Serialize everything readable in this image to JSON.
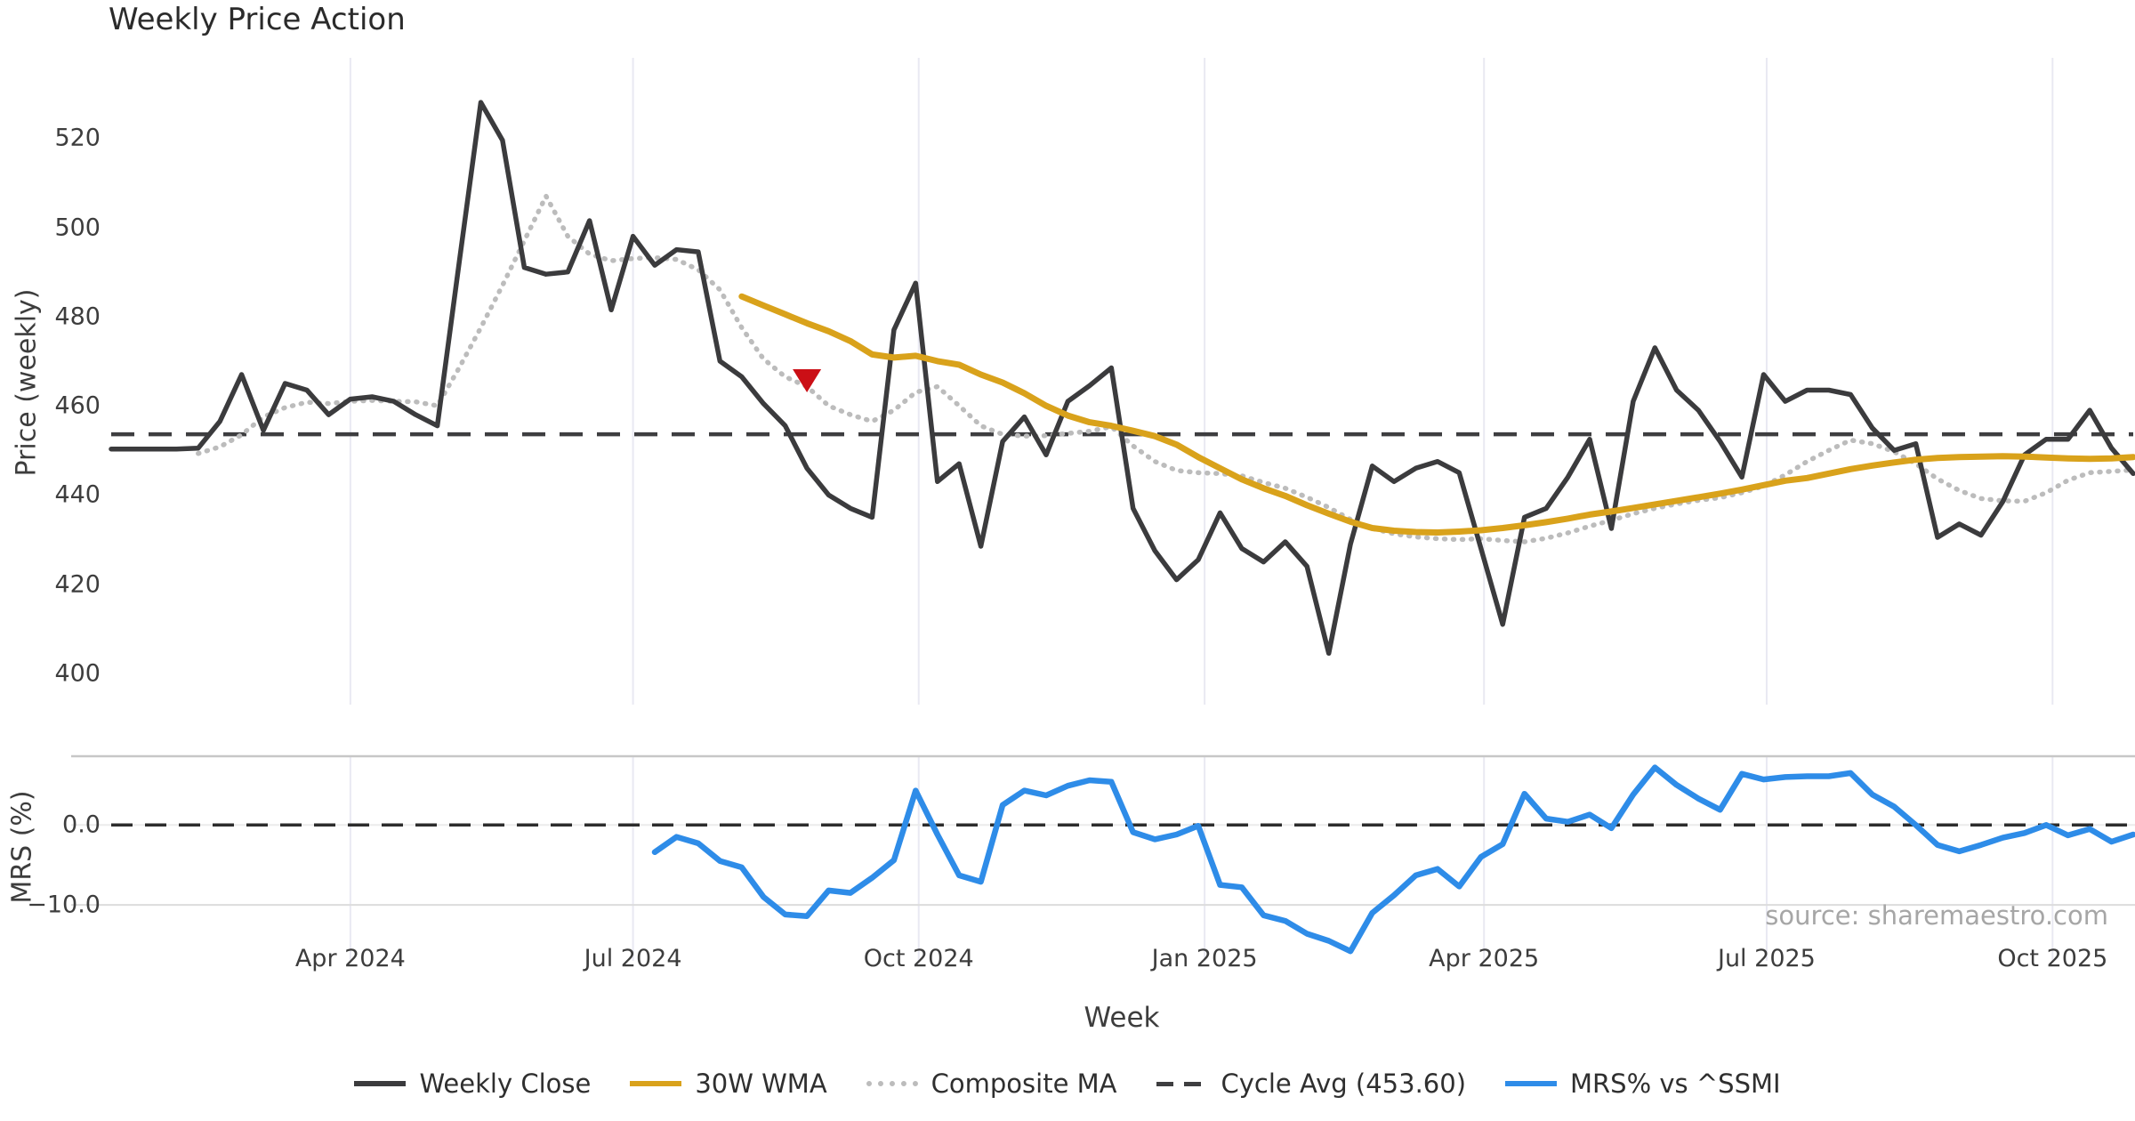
{
  "title": "Weekly Price Action",
  "source": "source: sharemaestro.com",
  "x_axis": {
    "label": "Week"
  },
  "legend": [
    {
      "label": "Weekly Close",
      "swatch": "solid",
      "color": "#3b3b3d"
    },
    {
      "label": "30W WMA",
      "swatch": "solid",
      "color": "#d9a21b"
    },
    {
      "label": "Composite MA",
      "swatch": "dotted",
      "color": "#bcbcbc"
    },
    {
      "label": "Cycle Avg (453.60)",
      "swatch": "dashed",
      "color": "#3e3e40"
    },
    {
      "label": "MRS% vs ^SSMI",
      "swatch": "solid",
      "color": "#2e8ce8"
    }
  ],
  "chart_data": [
    {
      "type": "line",
      "panel": "price",
      "title": "Weekly Price Action",
      "ylabel": "Price (weekly)",
      "ylim": [
        393,
        538
      ],
      "yticks": [
        400,
        420,
        440,
        460,
        480,
        500,
        520
      ],
      "grid": "vertical-only",
      "start_date": "2024-01-15",
      "weeks_total": 93,
      "xticks": [
        {
          "week": 11.0,
          "label": "Apr 2024"
        },
        {
          "week": 24.0,
          "label": "Jul 2024"
        },
        {
          "week": 37.14,
          "label": "Oct 2024"
        },
        {
          "week": 50.29,
          "label": "Jan 2025"
        },
        {
          "week": 63.14,
          "label": "Apr 2025"
        },
        {
          "week": 76.14,
          "label": "Jul 2025"
        },
        {
          "week": 89.29,
          "label": "Oct 2025"
        }
      ],
      "series": [
        {
          "name": "Weekly Close",
          "color": "#3b3b3d",
          "style": "solid",
          "width": 5.5,
          "start_week": 0,
          "values": [
            450.3,
            450.3,
            450.3,
            450.3,
            450.5,
            456.5,
            467.0,
            454.5,
            465.0,
            463.5,
            458.0,
            461.5,
            462.0,
            461.0,
            458.0,
            455.5,
            492.0,
            528.0,
            519.5,
            491.0,
            489.5,
            490.0,
            501.5,
            481.5,
            498.0,
            491.5,
            495.0,
            494.5,
            470.0,
            466.5,
            460.5,
            455.5,
            446.0,
            440.0,
            437.0,
            435.0,
            477.0,
            487.5,
            443.0,
            447.0,
            428.5,
            452.0,
            457.5,
            449.0,
            461.0,
            464.5,
            468.5,
            437.0,
            427.5,
            421.0,
            425.5,
            436.0,
            428.0,
            425.0,
            429.5,
            424.0,
            404.5,
            429.0,
            446.5,
            443.0,
            446.0,
            447.5,
            445.0,
            428.0,
            411.0,
            435.0,
            437.0,
            444.0,
            452.5,
            432.5,
            461.0,
            473.0,
            463.5,
            459.0,
            452.0,
            444.0,
            467.0,
            461.0,
            463.5,
            463.5,
            462.5,
            455.0,
            450.0,
            451.5,
            430.5,
            433.5,
            431.0,
            438.5,
            449.0,
            452.5,
            452.5,
            459.0,
            450.5,
            444.8
          ]
        },
        {
          "name": "30W WMA",
          "color": "#d9a21b",
          "style": "solid",
          "width": 7,
          "start_week": 29,
          "values": [
            484.5,
            482.5,
            480.5,
            478.5,
            476.7,
            474.5,
            471.5,
            470.8,
            471.2,
            470.0,
            469.2,
            467.0,
            465.2,
            462.8,
            460.0,
            457.8,
            456.3,
            455.5,
            454.4,
            453.2,
            451.3,
            448.5,
            446.0,
            443.5,
            441.5,
            439.8,
            437.7,
            435.8,
            434.0,
            432.6,
            432.0,
            431.7,
            431.6,
            431.8,
            432.1,
            432.6,
            433.2,
            433.9,
            434.7,
            435.6,
            436.3,
            437.1,
            437.9,
            438.7,
            439.5,
            440.3,
            441.2,
            442.2,
            443.2,
            443.8,
            444.8,
            445.8,
            446.6,
            447.3,
            447.9,
            448.3,
            448.5,
            448.6,
            448.7,
            448.6,
            448.4,
            448.2,
            448.1,
            448.2,
            448.5
          ]
        },
        {
          "name": "Composite MA",
          "color": "#bcbcbc",
          "style": "dotted",
          "width": 5.5,
          "start_week": 4,
          "values": [
            449.3,
            450.8,
            453.5,
            457.5,
            459.6,
            460.8,
            460.5,
            461.0,
            461.2,
            461.0,
            460.9,
            460.0,
            468.5,
            477.5,
            487.0,
            497.0,
            507.0,
            498.0,
            494.0,
            492.5,
            493.0,
            493.2,
            492.8,
            490.5,
            486.0,
            477.5,
            470.5,
            466.5,
            464.3,
            460.0,
            458.0,
            456.5,
            459.0,
            463.0,
            464.3,
            460.0,
            455.5,
            453.6,
            453.2,
            453.3,
            453.8,
            454.3,
            455.3,
            451.0,
            447.5,
            445.5,
            445.0,
            444.8,
            444.3,
            442.8,
            441.5,
            439.5,
            437.2,
            434.5,
            432.5,
            431.3,
            430.6,
            430.2,
            430.0,
            430.2,
            429.8,
            429.5,
            430.3,
            431.5,
            433.0,
            434.3,
            435.8,
            437.0,
            438.0,
            438.8,
            439.4,
            440.5,
            442.0,
            444.5,
            447.5,
            450.0,
            452.3,
            451.5,
            449.7,
            447.0,
            443.6,
            441.0,
            439.2,
            438.7,
            438.6,
            440.5,
            443.3,
            445.0,
            445.3,
            445.6
          ]
        },
        {
          "name": "Cycle Avg",
          "type": "hline",
          "color": "#3e3e40",
          "style": "dashed",
          "width": 4.5,
          "value": 453.6
        }
      ],
      "markers": [
        {
          "name": "sell-signal",
          "shape": "triangle-down",
          "color": "#cb0f16",
          "week": 32,
          "value": 466
        }
      ]
    },
    {
      "type": "line",
      "panel": "mrs",
      "ylabel": "MRS (%)",
      "ylim": [
        -17,
        8.6
      ],
      "yticks": [
        {
          "value": 0,
          "label": "0.0"
        },
        {
          "value": -10,
          "label": "−10.0"
        }
      ],
      "zero_line": {
        "style": "dashed",
        "color": "#2d2d2d",
        "value": 0,
        "width": 3.5
      },
      "series": [
        {
          "name": "MRS% vs ^SSMI",
          "color": "#2e8ce8",
          "style": "solid",
          "width": 6.5,
          "start_week": 25,
          "values": [
            -3.4,
            -1.5,
            -2.3,
            -4.5,
            -5.3,
            -9.0,
            -11.2,
            -11.4,
            -8.2,
            -8.5,
            -6.6,
            -4.4,
            4.3,
            -1.2,
            -6.3,
            -7.1,
            2.5,
            4.3,
            3.7,
            4.9,
            5.6,
            5.4,
            -0.9,
            -1.8,
            -1.2,
            -0.1,
            -7.5,
            -7.8,
            -11.3,
            -12.0,
            -13.6,
            -14.5,
            -15.8,
            -11.0,
            -8.8,
            -6.3,
            -5.5,
            -7.7,
            -4.0,
            -2.4,
            3.9,
            0.8,
            0.4,
            1.3,
            -0.4,
            3.8,
            7.2,
            5.0,
            3.3,
            1.9,
            6.4,
            5.7,
            6.0,
            6.1,
            6.1,
            6.5,
            3.8,
            2.3,
            0.0,
            -2.5,
            -3.3,
            -2.5,
            -1.6,
            -1.0,
            0.0,
            -1.3,
            -0.5,
            -2.1,
            -1.2
          ]
        }
      ]
    }
  ]
}
